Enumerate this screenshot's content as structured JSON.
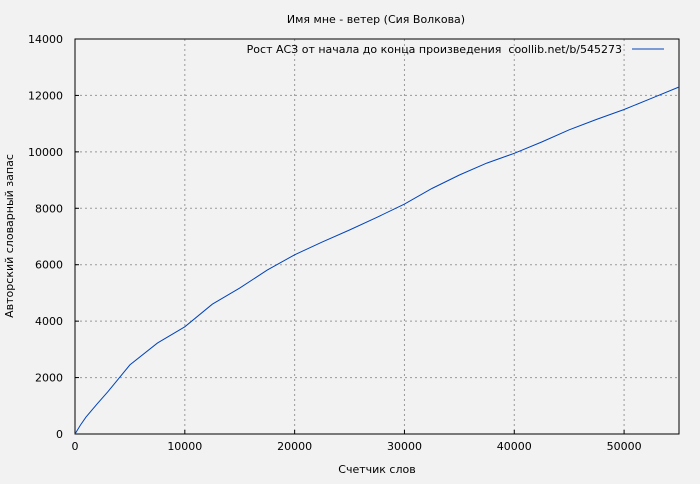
{
  "chart_data": {
    "type": "line",
    "title": "Имя мне - ветер (Сия Волкова)",
    "xlabel": "Счетчик слов",
    "ylabel": "Авторский словарный запас",
    "xlim": [
      0,
      55000
    ],
    "ylim": [
      0,
      14000
    ],
    "xticks": [
      0,
      10000,
      20000,
      30000,
      40000,
      50000
    ],
    "yticks": [
      0,
      2000,
      4000,
      6000,
      8000,
      10000,
      12000,
      14000
    ],
    "grid": true,
    "legend_position": "top-right",
    "series": [
      {
        "name": "Рост АСЗ от начала до конца произведения  coollib.net/b/545273",
        "color": "#0044bb",
        "x": [
          0,
          500,
          1000,
          2000,
          3000,
          5000,
          7500,
          10000,
          12500,
          15000,
          17500,
          20000,
          22500,
          25000,
          27500,
          30000,
          32500,
          35000,
          37500,
          40000,
          42500,
          45000,
          47500,
          50000,
          52500,
          55000
        ],
        "y": [
          0,
          320,
          600,
          1060,
          1500,
          2450,
          3220,
          3800,
          4600,
          5170,
          5810,
          6350,
          6800,
          7230,
          7680,
          8150,
          8700,
          9180,
          9600,
          9950,
          10350,
          10780,
          11150,
          11500,
          11900,
          12300
        ]
      }
    ]
  }
}
